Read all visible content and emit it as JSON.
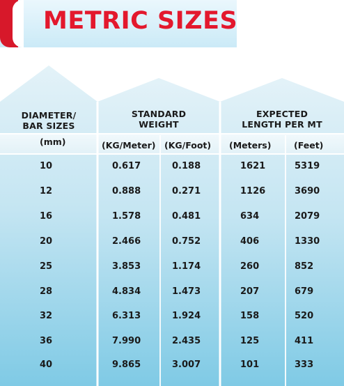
{
  "title": "METRIC SIZES",
  "colors": {
    "title": "#e3182d",
    "accent_red": "#d7182a",
    "table_top": "#d8edf6",
    "table_bottom": "#88cde6",
    "header_band": "#eef7fb"
  },
  "headers": {
    "diameter_line1": "DIAMETER/",
    "diameter_line2": "BAR SIZES",
    "standard_line1": "STANDARD",
    "standard_line2": "WEIGHT",
    "expected_line1": "EXPECTED",
    "expected_line2": "LENGTH PER MT"
  },
  "subheaders": {
    "mm": "(mm)",
    "kg_meter": "(KG/Meter)",
    "kg_foot": "(KG/Foot)",
    "meters": "(Meters)",
    "feet": "(Feet)"
  },
  "rows": [
    {
      "mm": "10",
      "kg_meter": "0.617",
      "kg_foot": "0.188",
      "meters": "1621",
      "feet": "5319"
    },
    {
      "mm": "12",
      "kg_meter": "0.888",
      "kg_foot": "0.271",
      "meters": "1126",
      "feet": "3690"
    },
    {
      "mm": "16",
      "kg_meter": "1.578",
      "kg_foot": "0.481",
      "meters": "634",
      "feet": "2079"
    },
    {
      "mm": "20",
      "kg_meter": "2.466",
      "kg_foot": "0.752",
      "meters": "406",
      "feet": "1330"
    },
    {
      "mm": "25",
      "kg_meter": "3.853",
      "kg_foot": "1.174",
      "meters": "260",
      "feet": "852"
    },
    {
      "mm": "28",
      "kg_meter": "4.834",
      "kg_foot": "1.473",
      "meters": "207",
      "feet": "679"
    },
    {
      "mm": "32",
      "kg_meter": "6.313",
      "kg_foot": "1.924",
      "meters": "158",
      "feet": "520"
    },
    {
      "mm": "36",
      "kg_meter": "7.990",
      "kg_foot": "2.435",
      "meters": "125",
      "feet": "411"
    },
    {
      "mm": "40",
      "kg_meter": "9.865",
      "kg_foot": "3.007",
      "meters": "101",
      "feet": "333"
    }
  ]
}
